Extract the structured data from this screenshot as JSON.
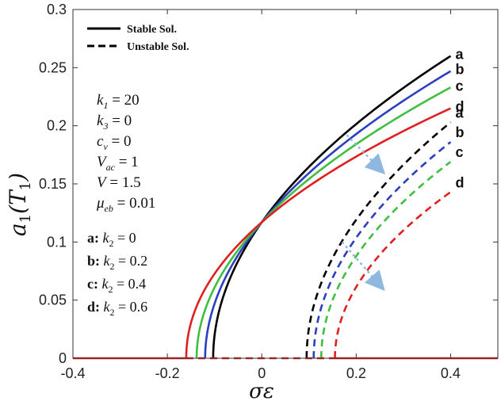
{
  "chart_data": {
    "type": "line",
    "title": "",
    "xlabel": "σε",
    "ylabel": "a1(T1)",
    "xlim": [
      -0.4,
      0.5
    ],
    "ylim": [
      0,
      0.3
    ],
    "xticks": [
      -0.4,
      -0.2,
      0,
      0.2,
      0.4
    ],
    "xtick_labels": [
      "-0.4",
      "-0.2",
      "0",
      "0.2",
      "0.4"
    ],
    "yticks": [
      0,
      0.05,
      0.1,
      0.15,
      0.2,
      0.25,
      0.3
    ],
    "ytick_labels": [
      "0",
      "0.05",
      "0.1",
      "0.15",
      "0.2",
      "0.25",
      "0.3"
    ],
    "grid": false,
    "legend": {
      "placement": "top-left",
      "entries": [
        {
          "label": "Stable Sol.",
          "style": "solid"
        },
        {
          "label": "Unstable Sol.",
          "style": "dashed"
        }
      ]
    },
    "parameters": [
      {
        "symbol": "k",
        "sub": "1",
        "value": "20"
      },
      {
        "symbol": "k",
        "sub": "3",
        "value": "0"
      },
      {
        "symbol": "c",
        "sub": "v",
        "value": "0"
      },
      {
        "symbol": "V",
        "sub": "ac",
        "value": "1"
      },
      {
        "symbol": "V",
        "sub": "",
        "value": "1.5"
      },
      {
        "symbol": "μ",
        "sub": "eb",
        "value": "0.01"
      }
    ],
    "k2_cases": [
      {
        "tag": "a:",
        "label": "k",
        "sub": "2",
        "value": "0"
      },
      {
        "tag": "b:",
        "label": "k",
        "sub": "2",
        "value": "0.2"
      },
      {
        "tag": "c:",
        "label": "k",
        "sub": "2",
        "value": "0.4"
      },
      {
        "tag": "d:",
        "label": "k",
        "sub": "2",
        "value": "0.6"
      }
    ],
    "series": [
      {
        "name": "a",
        "k2": 0,
        "color": "#000000",
        "stable_onset": -0.103,
        "stable_end": 0.26,
        "unstable_onset": 0.095,
        "unstable_end": 0.203,
        "tag_stable": "a",
        "tag_unstable": "a"
      },
      {
        "name": "b",
        "k2": 0.2,
        "color": "#2b3fc0",
        "stable_onset": -0.12,
        "stable_end": 0.247,
        "unstable_onset": 0.11,
        "unstable_end": 0.186,
        "tag_stable": "b",
        "tag_unstable": "b"
      },
      {
        "name": "c",
        "k2": 0.4,
        "color": "#3fbf3f",
        "stable_onset": -0.138,
        "stable_end": 0.233,
        "unstable_onset": 0.126,
        "unstable_end": 0.169,
        "tag_stable": "c",
        "tag_unstable": "c"
      },
      {
        "name": "d",
        "k2": 0.6,
        "color": "#e02020",
        "stable_onset": -0.16,
        "stable_end": 0.215,
        "unstable_onset": 0.155,
        "unstable_end": 0.143,
        "tag_stable": "d",
        "tag_unstable": "d"
      }
    ],
    "crossing_point": {
      "x": 0,
      "y": 0.117
    },
    "trivial_solution": {
      "y": 0,
      "color": "#e02020"
    },
    "annotations": [
      {
        "type": "arrow",
        "color": "#8fb8e0",
        "from": {
          "x": 0.18,
          "y": 0.192
        },
        "to": {
          "x": 0.25,
          "y": 0.163
        }
      },
      {
        "type": "arrow",
        "color": "#8fb8e0",
        "from": {
          "x": 0.17,
          "y": 0.1
        },
        "to": {
          "x": 0.25,
          "y": 0.063
        }
      }
    ]
  }
}
